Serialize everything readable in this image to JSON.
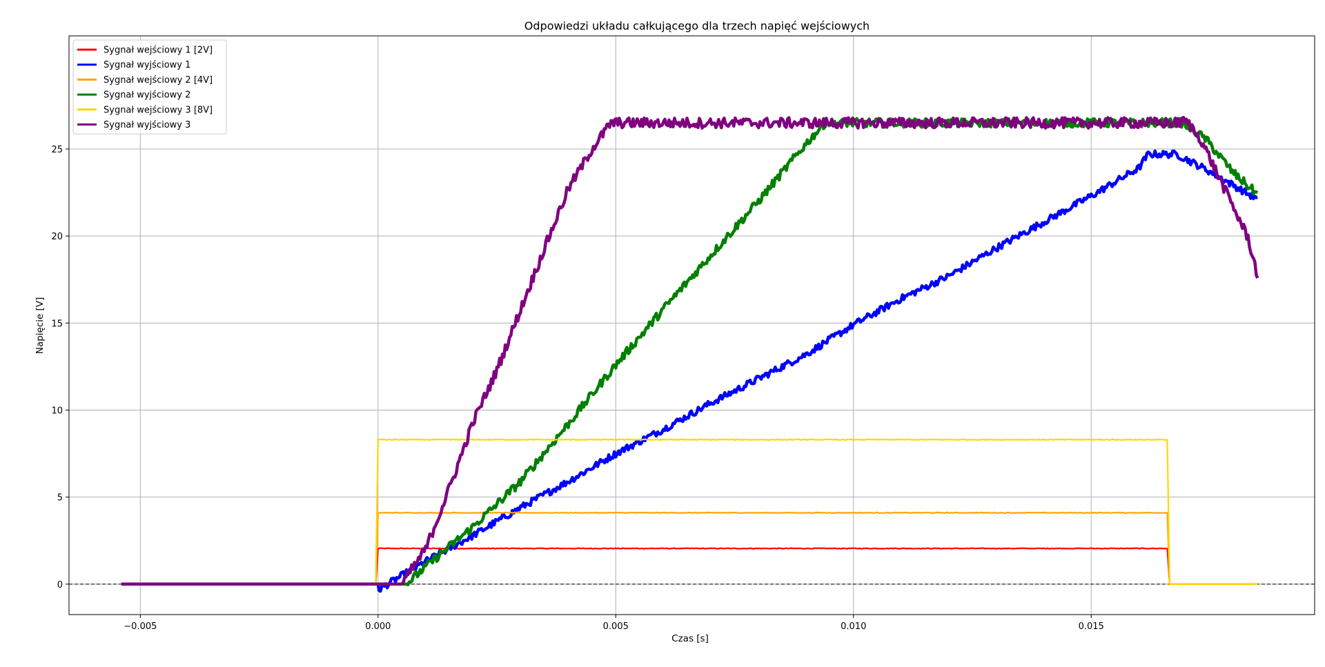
{
  "chart_data": {
    "type": "line",
    "title": "Odpowiedzi układu całkującego dla trzech napięć wejściowych",
    "xlabel": "Czas [s]",
    "ylabel": "Napięcie [V]",
    "xlim": [
      -0.0065,
      0.0197
    ],
    "ylim": [
      -1.75,
      31.5
    ],
    "xticks": [
      -0.005,
      0.0,
      0.005,
      0.01,
      0.015
    ],
    "xtick_labels": [
      "−0.005",
      "0.000",
      "0.005",
      "0.010",
      "0.015"
    ],
    "yticks": [
      0,
      5,
      10,
      15,
      20,
      25
    ],
    "ytick_labels": [
      "0",
      "5",
      "10",
      "15",
      "20",
      "25"
    ],
    "grid": true,
    "legend_position": "top-left",
    "reference_line": {
      "y": 0,
      "style": "dashed",
      "color": "#000000"
    },
    "series": [
      {
        "name": "Sygnał wejściowy 1 [2V]",
        "color": "#ff0000",
        "noise": 0.02,
        "points": [
          [
            -0.0054,
            0.0
          ],
          [
            -5e-05,
            0.0
          ],
          [
            0.0,
            2.05
          ],
          [
            0.0166,
            2.05
          ],
          [
            0.01665,
            0.0
          ],
          [
            0.0185,
            0.0
          ]
        ]
      },
      {
        "name": "Sygnał wyjściowy 1",
        "color": "#0000ff",
        "noise": 0.2,
        "points": [
          [
            -0.0054,
            0.0
          ],
          [
            0.0,
            0.0
          ],
          [
            2e-05,
            -0.3
          ],
          [
            0.001,
            1.3
          ],
          [
            0.002,
            2.8
          ],
          [
            0.003,
            4.4
          ],
          [
            0.004,
            5.9
          ],
          [
            0.005,
            7.5
          ],
          [
            0.006,
            8.9
          ],
          [
            0.007,
            10.4
          ],
          [
            0.008,
            11.8
          ],
          [
            0.009,
            13.2
          ],
          [
            0.01,
            14.9
          ],
          [
            0.011,
            16.4
          ],
          [
            0.012,
            17.7
          ],
          [
            0.013,
            19.3
          ],
          [
            0.014,
            20.8
          ],
          [
            0.015,
            22.3
          ],
          [
            0.016,
            23.9
          ],
          [
            0.0162,
            24.7
          ],
          [
            0.0168,
            24.7
          ],
          [
            0.0175,
            23.7
          ],
          [
            0.018,
            22.9
          ],
          [
            0.0185,
            22.1
          ]
        ]
      },
      {
        "name": "Sygnał wejściowy 2 [4V]",
        "color": "#ffa500",
        "noise": 0.02,
        "points": [
          [
            -0.0054,
            0.0
          ],
          [
            -5e-05,
            0.0
          ],
          [
            0.0,
            4.1
          ],
          [
            0.0166,
            4.1
          ],
          [
            0.01665,
            0.0
          ],
          [
            0.0185,
            0.0
          ]
        ]
      },
      {
        "name": "Sygnał wyjściowy 2",
        "color": "#008000",
        "noise": 0.25,
        "points": [
          [
            -0.0054,
            0.0
          ],
          [
            0.0006,
            0.0
          ],
          [
            0.001,
            1.0
          ],
          [
            0.002,
            3.3
          ],
          [
            0.003,
            5.9
          ],
          [
            0.004,
            9.2
          ],
          [
            0.005,
            12.6
          ],
          [
            0.006,
            15.8
          ],
          [
            0.007,
            18.9
          ],
          [
            0.008,
            22.0
          ],
          [
            0.009,
            25.3
          ],
          [
            0.0094,
            26.5
          ],
          [
            0.0169,
            26.5
          ],
          [
            0.0174,
            25.6
          ],
          [
            0.018,
            23.6
          ],
          [
            0.0185,
            22.4
          ]
        ]
      },
      {
        "name": "Sygnał wejściowy 3 [8V]",
        "color": "#ffd700",
        "noise": 0.02,
        "points": [
          [
            -0.0054,
            0.0
          ],
          [
            -5e-05,
            0.0
          ],
          [
            0.0,
            8.3
          ],
          [
            0.0166,
            8.3
          ],
          [
            0.01665,
            0.0
          ],
          [
            0.0185,
            0.0
          ]
        ]
      },
      {
        "name": "Sygnał wyjściowy 3",
        "color": "#800080",
        "noise": 0.3,
        "points": [
          [
            -0.0054,
            0.0
          ],
          [
            0.0005,
            0.0
          ],
          [
            0.001,
            2.0
          ],
          [
            0.0015,
            5.5
          ],
          [
            0.002,
            9.3
          ],
          [
            0.0025,
            12.3
          ],
          [
            0.003,
            15.8
          ],
          [
            0.0035,
            19.3
          ],
          [
            0.004,
            22.7
          ],
          [
            0.0045,
            25.0
          ],
          [
            0.0049,
            26.5
          ],
          [
            0.0168,
            26.5
          ],
          [
            0.017,
            26.6
          ],
          [
            0.0173,
            25.6
          ],
          [
            0.0177,
            23.3
          ],
          [
            0.018,
            21.6
          ],
          [
            0.0183,
            19.9
          ],
          [
            0.0185,
            17.7
          ]
        ]
      }
    ]
  }
}
